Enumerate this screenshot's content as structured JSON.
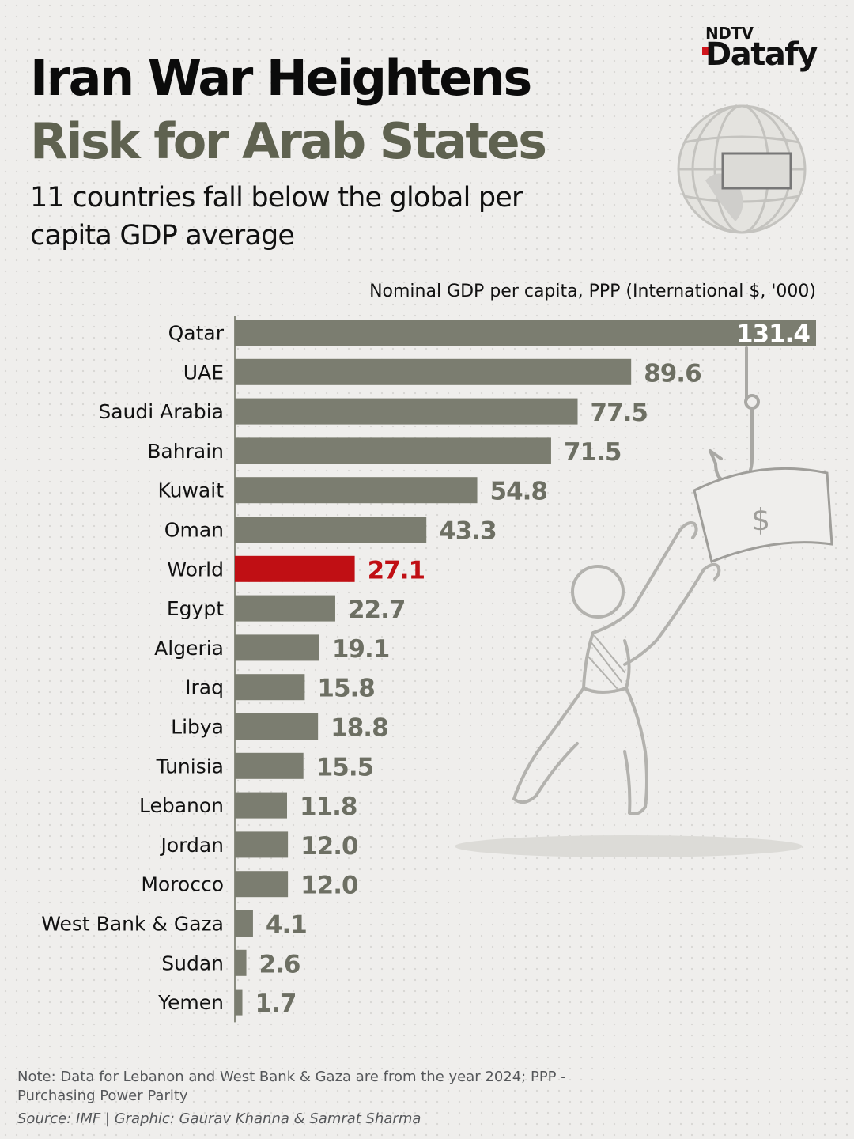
{
  "header": {
    "title_line1": "Iran War Heightens",
    "title_line2": "Risk for Arab States",
    "subtitle": "11 countries fall below the global per capita GDP average"
  },
  "brand": {
    "top": "NDTV",
    "bottom": "Datafy"
  },
  "colors": {
    "bar": "#7b7d70",
    "highlight": "#c00f14",
    "title_accent": "#5f6250",
    "value_label": "#6d6f63"
  },
  "chart_data": {
    "type": "bar",
    "orientation": "horizontal",
    "title": "Iran War Heightens Risk for Arab States",
    "subtitle": "11 countries fall below the global per capita GDP average",
    "xlabel": "Nominal GDP per capita, PPP (International $, '000)",
    "categories": [
      "Qatar",
      "UAE",
      "Saudi Arabia",
      "Bahrain",
      "Kuwait",
      "Oman",
      "World",
      "Egypt",
      "Algeria",
      "Iraq",
      "Libya",
      "Tunisia",
      "Lebanon",
      "Jordan",
      "Morocco",
      "West Bank & Gaza",
      "Sudan",
      "Yemen"
    ],
    "values": [
      131.4,
      89.6,
      77.5,
      71.5,
      54.8,
      43.3,
      27.1,
      22.7,
      19.1,
      15.8,
      18.8,
      15.5,
      11.8,
      12.0,
      12.0,
      4.1,
      2.6,
      1.7
    ],
    "value_labels": [
      "131.4",
      "89.6",
      "77.5",
      "71.5",
      "54.8",
      "43.3",
      "27.1",
      "22.7",
      "19.1",
      "15.8",
      "18.8",
      "15.5",
      "11.8",
      "12.0",
      "12.0",
      "4.1",
      "2.6",
      "1.7"
    ],
    "highlight": "World",
    "xlim": [
      0,
      131.4
    ],
    "grid": false
  },
  "footer": {
    "note": "Note: Data for Lebanon and West Bank & Gaza are from the year 2024; PPP - Purchasing Power Parity",
    "source": "Source: IMF | Graphic: Gaurav Khanna & Samrat Sharma"
  },
  "icons": [
    "globe-icon",
    "dollar-bill-icon",
    "fishing-hook-icon",
    "person-reaching-illustration"
  ]
}
